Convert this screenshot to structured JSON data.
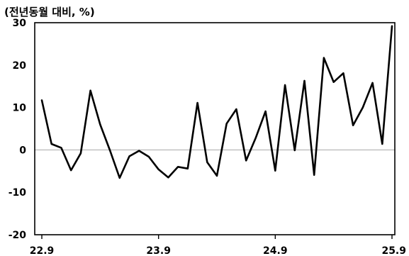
{
  "chart_data": {
    "type": "line",
    "unit_label": "(전년동월 대비, %)",
    "xlabel": "",
    "ylabel": "",
    "ylim": [
      -20,
      30
    ],
    "yticks": [
      30,
      20,
      10,
      0,
      -10,
      -20
    ],
    "xticks": [
      "22.9",
      "23.9",
      "24.9",
      "25.9"
    ],
    "grid": false,
    "zero_line": true,
    "series": [
      {
        "x": [
          "22.9",
          "22.10",
          "22.11",
          "22.12",
          "23.1",
          "23.2",
          "23.3",
          "23.4",
          "23.5",
          "23.6",
          "23.7",
          "23.8",
          "23.9",
          "23.10",
          "23.11",
          "23.12",
          "24.1",
          "24.2",
          "24.3",
          "24.4",
          "24.5",
          "24.6",
          "24.7",
          "24.8",
          "24.9",
          "24.10",
          "24.11",
          "24.12",
          "25.1",
          "25.2",
          "25.3",
          "25.4",
          "25.5",
          "25.6",
          "25.7",
          "25.8",
          "25.9"
        ],
        "values": [
          11.7,
          1.4,
          0.5,
          -4.8,
          -0.8,
          14.0,
          6.0,
          -0.1,
          -6.6,
          -1.5,
          -0.2,
          -1.6,
          -4.6,
          -6.5,
          -4.0,
          -4.4,
          11.1,
          -2.9,
          -6.1,
          6.2,
          9.6,
          -2.5,
          2.9,
          9.1,
          -4.9,
          15.3,
          -0.1,
          16.3,
          -5.9,
          21.7,
          16.0,
          18.1,
          5.8,
          10.0,
          15.8,
          1.4,
          29.2
        ],
        "color": "#000000"
      }
    ]
  }
}
